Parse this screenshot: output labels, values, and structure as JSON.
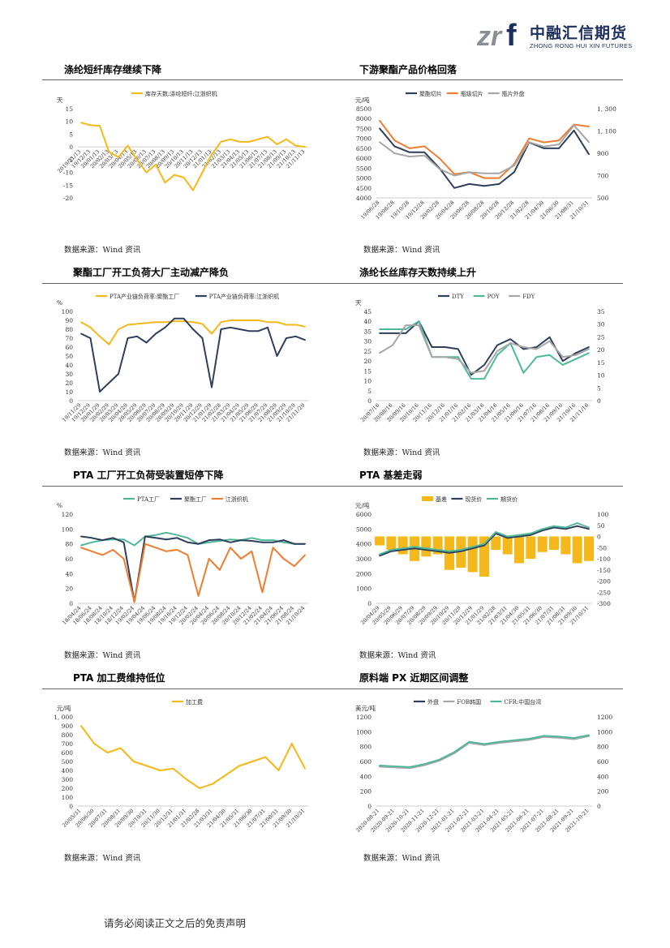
{
  "header": {
    "logo_mark": "zrf",
    "company_cn": "中融汇信期货",
    "company_en": "ZHONG RONG HUI XIN FUTURES"
  },
  "sections": [
    {
      "title": "涤纶短纤库存继续下降",
      "source": "数据来源：Wind 资讯"
    },
    {
      "title": "下游聚酯产品价格回落",
      "source": "数据来源：Wind 资讯"
    },
    {
      "title": "聚酯工厂开工负荷大厂主动减产降负",
      "source": "数据来源：Wind 资讯"
    },
    {
      "title": "涤纶长丝库存天数持续上升",
      "source": "数据来源：Wind 资讯"
    },
    {
      "title": "PTA 工厂开工负荷受装置短停下降",
      "source": "数据来源：Wind 资讯"
    },
    {
      "title": "PTA 基差走弱",
      "source": "数据来源：Wind 资讯"
    },
    {
      "title": "PTA 加工费维持低位",
      "source": "数据来源：Wind 资讯"
    },
    {
      "title": "原料端 PX 近期区间调整",
      "source": "数据来源：Wind 资讯"
    }
  ],
  "footer": "请务必阅读正文之后的免责声明",
  "chart_data": [
    {
      "type": "line",
      "unit": "天",
      "ylim": [
        -20,
        15
      ],
      "yticks": [
        15,
        10,
        5,
        0,
        -5,
        -10,
        -15,
        -20
      ],
      "categories": [
        "2019/11/13",
        "2019/12/13",
        "20/01/13",
        "20/02/13",
        "20/03/13",
        "20/04/13",
        "20/05/13",
        "20/06/13",
        "20/07/13",
        "20/08/13",
        "20/09/13",
        "20/10/13",
        "20/11/13",
        "20/12/13",
        "21/01/13",
        "21/02/13",
        "21/03/13",
        "21/04/13",
        "21/05/13",
        "21/06/13",
        "21/07/13",
        "21/08/13",
        "21/09/13",
        "21/10/13",
        "21/11/13"
      ],
      "xticklabels": [
        "2019/11/13",
        "19/12/13",
        "20/01/13",
        "20/02/13",
        "20/03/13",
        "20/04/13",
        "20/05/13",
        "20/06/13",
        "20/07/13",
        "20/08/13",
        "20/09/13",
        "20/10/13",
        "20/11/13",
        "20/12/13",
        "21/01/13",
        "21/02/13",
        "21/03/13",
        "21/04/13",
        "21/05/13",
        "21/06/13",
        "21/07/13",
        "21/08/13",
        "21/09/13",
        "21/10/13",
        "21/11/13"
      ],
      "series": [
        {
          "name": "库存天数:涤纶短纤:江浙织机",
          "color": "#f4b81a",
          "values": [
            9.5,
            8.5,
            8.3,
            -2,
            -4,
            0.5,
            -5,
            -10,
            -7,
            -14,
            -11,
            -12,
            -17,
            -10,
            -3,
            2,
            3,
            2,
            2,
            3,
            4,
            1,
            3,
            0.5,
            0
          ]
        }
      ]
    },
    {
      "type": "line",
      "unit": "元/吨",
      "ylim": [
        4000,
        8500
      ],
      "y2lim": [
        500,
        1300
      ],
      "yticks": [
        8500,
        8000,
        7500,
        7000,
        6500,
        6000,
        5500,
        5000,
        4500,
        4000
      ],
      "y2ticks": [
        "1, 300",
        "1, 100",
        "900",
        "700",
        "500"
      ],
      "categories": [
        "19/06/28",
        "19/08/28",
        "19/10/28",
        "19/12/28",
        "20/02/28",
        "20/04/28",
        "20/06/28",
        "20/08/28",
        "20/10/28",
        "20/12/28",
        "21/02/28",
        "21/04/30",
        "21/06/30",
        "21/08/31",
        "21/10/31"
      ],
      "series": [
        {
          "name": "聚酯切片",
          "color": "#2e3f5c",
          "values": [
            7500,
            6600,
            6300,
            6300,
            5500,
            4500,
            4700,
            4600,
            4700,
            5300,
            6800,
            6500,
            6500,
            7400,
            6200
          ]
        },
        {
          "name": "瓶级切片",
          "color": "#ed7d31",
          "values": [
            7900,
            6900,
            6500,
            6600,
            6000,
            5200,
            5300,
            5000,
            5000,
            5700,
            7000,
            6800,
            6900,
            7700,
            7600
          ]
        },
        {
          "name": "瓶片外盘",
          "color": "#a6a6a6",
          "axis": "right",
          "values": [
            1000,
            900,
            870,
            880,
            760,
            700,
            730,
            720,
            720,
            790,
            1000,
            960,
            980,
            1150,
            1000
          ]
        }
      ]
    },
    {
      "type": "line",
      "unit": "%",
      "ylim": [
        0,
        100
      ],
      "yticks": [
        100,
        90,
        80,
        70,
        60,
        50,
        40,
        30,
        20,
        10,
        0
      ],
      "categories": [
        "19/11/29",
        "19/12/29",
        "20/01/29",
        "20/02/29",
        "20/03/29",
        "20/04/29",
        "20/05/29",
        "20/06/29",
        "20/07/29",
        "20/08/29",
        "20/09/29",
        "20/10/29",
        "20/11/29",
        "20/12/29",
        "21/01/29",
        "21/02/28",
        "21/03/29",
        "21/04/29",
        "21/05/29",
        "21/06/29",
        "21/07/29",
        "21/08/29",
        "21/09/29",
        "21/10/29",
        "21/11/29"
      ],
      "series": [
        {
          "name": "PTA产业链负荷率:聚酯工厂",
          "color": "#f4b81a",
          "values": [
            88,
            82,
            72,
            63,
            80,
            85,
            86,
            87,
            88,
            88,
            89,
            89,
            88,
            86,
            75,
            88,
            90,
            90,
            90,
            90,
            88,
            88,
            85,
            85,
            83
          ]
        },
        {
          "name": "PTA产业链负荷率:江浙织机",
          "color": "#2e3f5c",
          "values": [
            75,
            70,
            10,
            20,
            30,
            70,
            72,
            65,
            75,
            82,
            92,
            92,
            80,
            70,
            15,
            80,
            82,
            80,
            78,
            78,
            82,
            50,
            70,
            72,
            68
          ]
        }
      ]
    },
    {
      "type": "line",
      "unit": "天",
      "ylim": [
        0,
        45
      ],
      "y2lim": [
        0,
        35
      ],
      "yticks": [
        45,
        40,
        35,
        30,
        25,
        20,
        15,
        10,
        5,
        0
      ],
      "y2ticks": [
        35,
        30,
        25,
        20,
        15,
        10,
        5,
        0
      ],
      "categories": [
        "20/07/16",
        "20/08/16",
        "20/09/16",
        "20/10/16",
        "20/11/16",
        "20/12/16",
        "21/01/16",
        "21/02/16",
        "21/03/16",
        "21/04/16",
        "21/05/16",
        "21/06/16",
        "21/07/16",
        "21/08/16",
        "21/09/16",
        "21/10/16",
        "21/11/16"
      ],
      "series": [
        {
          "name": "DTY",
          "color": "#2e3f5c",
          "values": [
            34,
            34,
            34,
            40,
            27,
            27,
            26,
            13,
            18,
            28,
            31,
            26,
            27,
            32,
            20,
            24,
            27
          ]
        },
        {
          "name": "POY",
          "color": "#4fb89b",
          "values": [
            36,
            36,
            36,
            40,
            22,
            22,
            22,
            11,
            11,
            23,
            29,
            14,
            22,
            23,
            18,
            21,
            24
          ]
        },
        {
          "name": "FDY",
          "color": "#a6a6a6",
          "values": [
            24,
            28,
            38,
            38,
            22,
            22,
            21,
            14,
            15,
            25,
            29,
            27,
            26,
            30,
            22,
            23,
            26
          ]
        }
      ]
    },
    {
      "type": "line",
      "unit": "%",
      "ylim": [
        0,
        120
      ],
      "yticks": [
        120,
        100,
        80,
        60,
        40,
        20,
        0
      ],
      "categories": [
        "18/04/24",
        "18/06/24",
        "18/08/24",
        "18/10/24",
        "18/12/24",
        "19/02/24",
        "19/04/24",
        "19/06/24",
        "19/08/24",
        "19/10/24",
        "19/12/24",
        "20/02/24",
        "20/04/24",
        "20/06/24",
        "20/08/24",
        "20/10/24",
        "20/12/24",
        "21/02/24",
        "21/04/24",
        "21/06/24",
        "21/08/24",
        "21/10/24"
      ],
      "series": [
        {
          "name": "PTA工厂",
          "color": "#4fb89b",
          "values": [
            78,
            82,
            85,
            86,
            86,
            78,
            90,
            92,
            95,
            92,
            88,
            80,
            82,
            84,
            86,
            85,
            88,
            85,
            85,
            82,
            80,
            80
          ]
        },
        {
          "name": "聚酯工厂",
          "color": "#2e3f5c",
          "values": [
            90,
            88,
            85,
            88,
            82,
            2,
            90,
            88,
            86,
            88,
            82,
            80,
            85,
            86,
            82,
            85,
            84,
            82,
            82,
            85,
            80,
            80
          ]
        },
        {
          "name": "江浙织机",
          "color": "#ed7d31",
          "values": [
            75,
            70,
            65,
            72,
            60,
            2,
            80,
            75,
            70,
            72,
            65,
            10,
            60,
            45,
            75,
            60,
            70,
            15,
            75,
            60,
            50,
            65
          ]
        }
      ]
    },
    {
      "type": "bar+line",
      "unit": "元/吨",
      "ylim": [
        0,
        6000
      ],
      "y2lim": [
        -300,
        100
      ],
      "yticks": [
        6000,
        5000,
        4000,
        3000,
        2000,
        1000,
        0
      ],
      "y2ticks": [
        100,
        50,
        0,
        -50,
        -100,
        -150,
        -200,
        -250,
        -300
      ],
      "categories": [
        "20/04/29",
        "20/05/29",
        "20/06/29",
        "20/07/29",
        "20/08/29",
        "20/09/29",
        "20/10/29",
        "20/11/29",
        "20/12/29",
        "21/01/29",
        "21/02/28",
        "21/03/31",
        "21/04/30",
        "21/05/31",
        "21/06/30",
        "21/07/31",
        "21/08/31",
        "21/09/30",
        "21/10/31"
      ],
      "series": [
        {
          "name": "基差",
          "color": "#f4b81a",
          "axis": "right",
          "values": [
            -40,
            -60,
            -80,
            -110,
            -90,
            -80,
            -150,
            -140,
            -160,
            -180,
            -60,
            -80,
            -120,
            -100,
            -70,
            -60,
            -80,
            -120,
            -110
          ]
        },
        {
          "name": "现货价",
          "color": "#2e3f5c",
          "values": [
            3200,
            3500,
            3600,
            3700,
            3600,
            3500,
            3400,
            3500,
            3700,
            3900,
            4700,
            4400,
            4500,
            4600,
            4900,
            5100,
            5000,
            5200,
            5000
          ]
        },
        {
          "name": "期货价",
          "color": "#4fb89b",
          "values": [
            3300,
            3600,
            3700,
            3800,
            3700,
            3600,
            3500,
            3600,
            3800,
            4000,
            4800,
            4500,
            4600,
            4700,
            5000,
            5200,
            5100,
            5400,
            5100
          ]
        }
      ]
    },
    {
      "type": "line",
      "unit": "元/吨",
      "ylim": [
        0,
        1000
      ],
      "yticks": [
        "1, 000",
        "900",
        "800",
        "700",
        "600",
        "500",
        "400",
        "300",
        "200",
        "100",
        "0"
      ],
      "categories": [
        "20/05/31",
        "20/06/30",
        "20/07/31",
        "20/08/31",
        "20/09/30",
        "20/10/31",
        "20/11/30",
        "20/12/31",
        "21/01/31",
        "21/02/28",
        "21/03/31",
        "21/04/30",
        "21/05/31",
        "21/06/30",
        "21/07/31",
        "21/08/31",
        "21/09/30",
        "21/10/31"
      ],
      "series": [
        {
          "name": "加工费",
          "color": "#f4b81a",
          "values": [
            900,
            700,
            600,
            650,
            500,
            450,
            400,
            420,
            300,
            200,
            250,
            350,
            450,
            500,
            550,
            400,
            700,
            420
          ]
        }
      ]
    },
    {
      "type": "line",
      "unit": "美元/吨",
      "ylim": [
        0,
        1200
      ],
      "y2lim": [
        0,
        1200
      ],
      "yticks": [
        1200,
        1000,
        800,
        600,
        400,
        200,
        0
      ],
      "y2ticks": [
        1200,
        1000,
        800,
        600,
        400,
        200,
        0
      ],
      "categories": [
        "2020-08-21",
        "2020-09-21",
        "2020-10-21",
        "2020-11-21",
        "2020-12-21",
        "2021-01-21",
        "2021-02-21",
        "2021-03-21",
        "2021-04-21",
        "2021-05-21",
        "2021-06-21",
        "2021-07-21",
        "2021-08-21",
        "2021-09-21",
        "2021-10-21"
      ],
      "series": [
        {
          "name": "外盘",
          "color": "#2e3f5c",
          "values": [
            540,
            530,
            520,
            560,
            620,
            720,
            860,
            830,
            860,
            880,
            900,
            940,
            930,
            910,
            950
          ]
        },
        {
          "name": "FOB韩国",
          "color": "#a6a6a6",
          "values": [
            530,
            520,
            510,
            550,
            610,
            710,
            850,
            820,
            850,
            870,
            890,
            930,
            920,
            900,
            940
          ]
        },
        {
          "name": "CFR:中国台湾",
          "color": "#4fb89b",
          "values": [
            545,
            535,
            525,
            565,
            625,
            725,
            865,
            835,
            865,
            885,
            905,
            945,
            935,
            915,
            955
          ]
        }
      ]
    }
  ]
}
